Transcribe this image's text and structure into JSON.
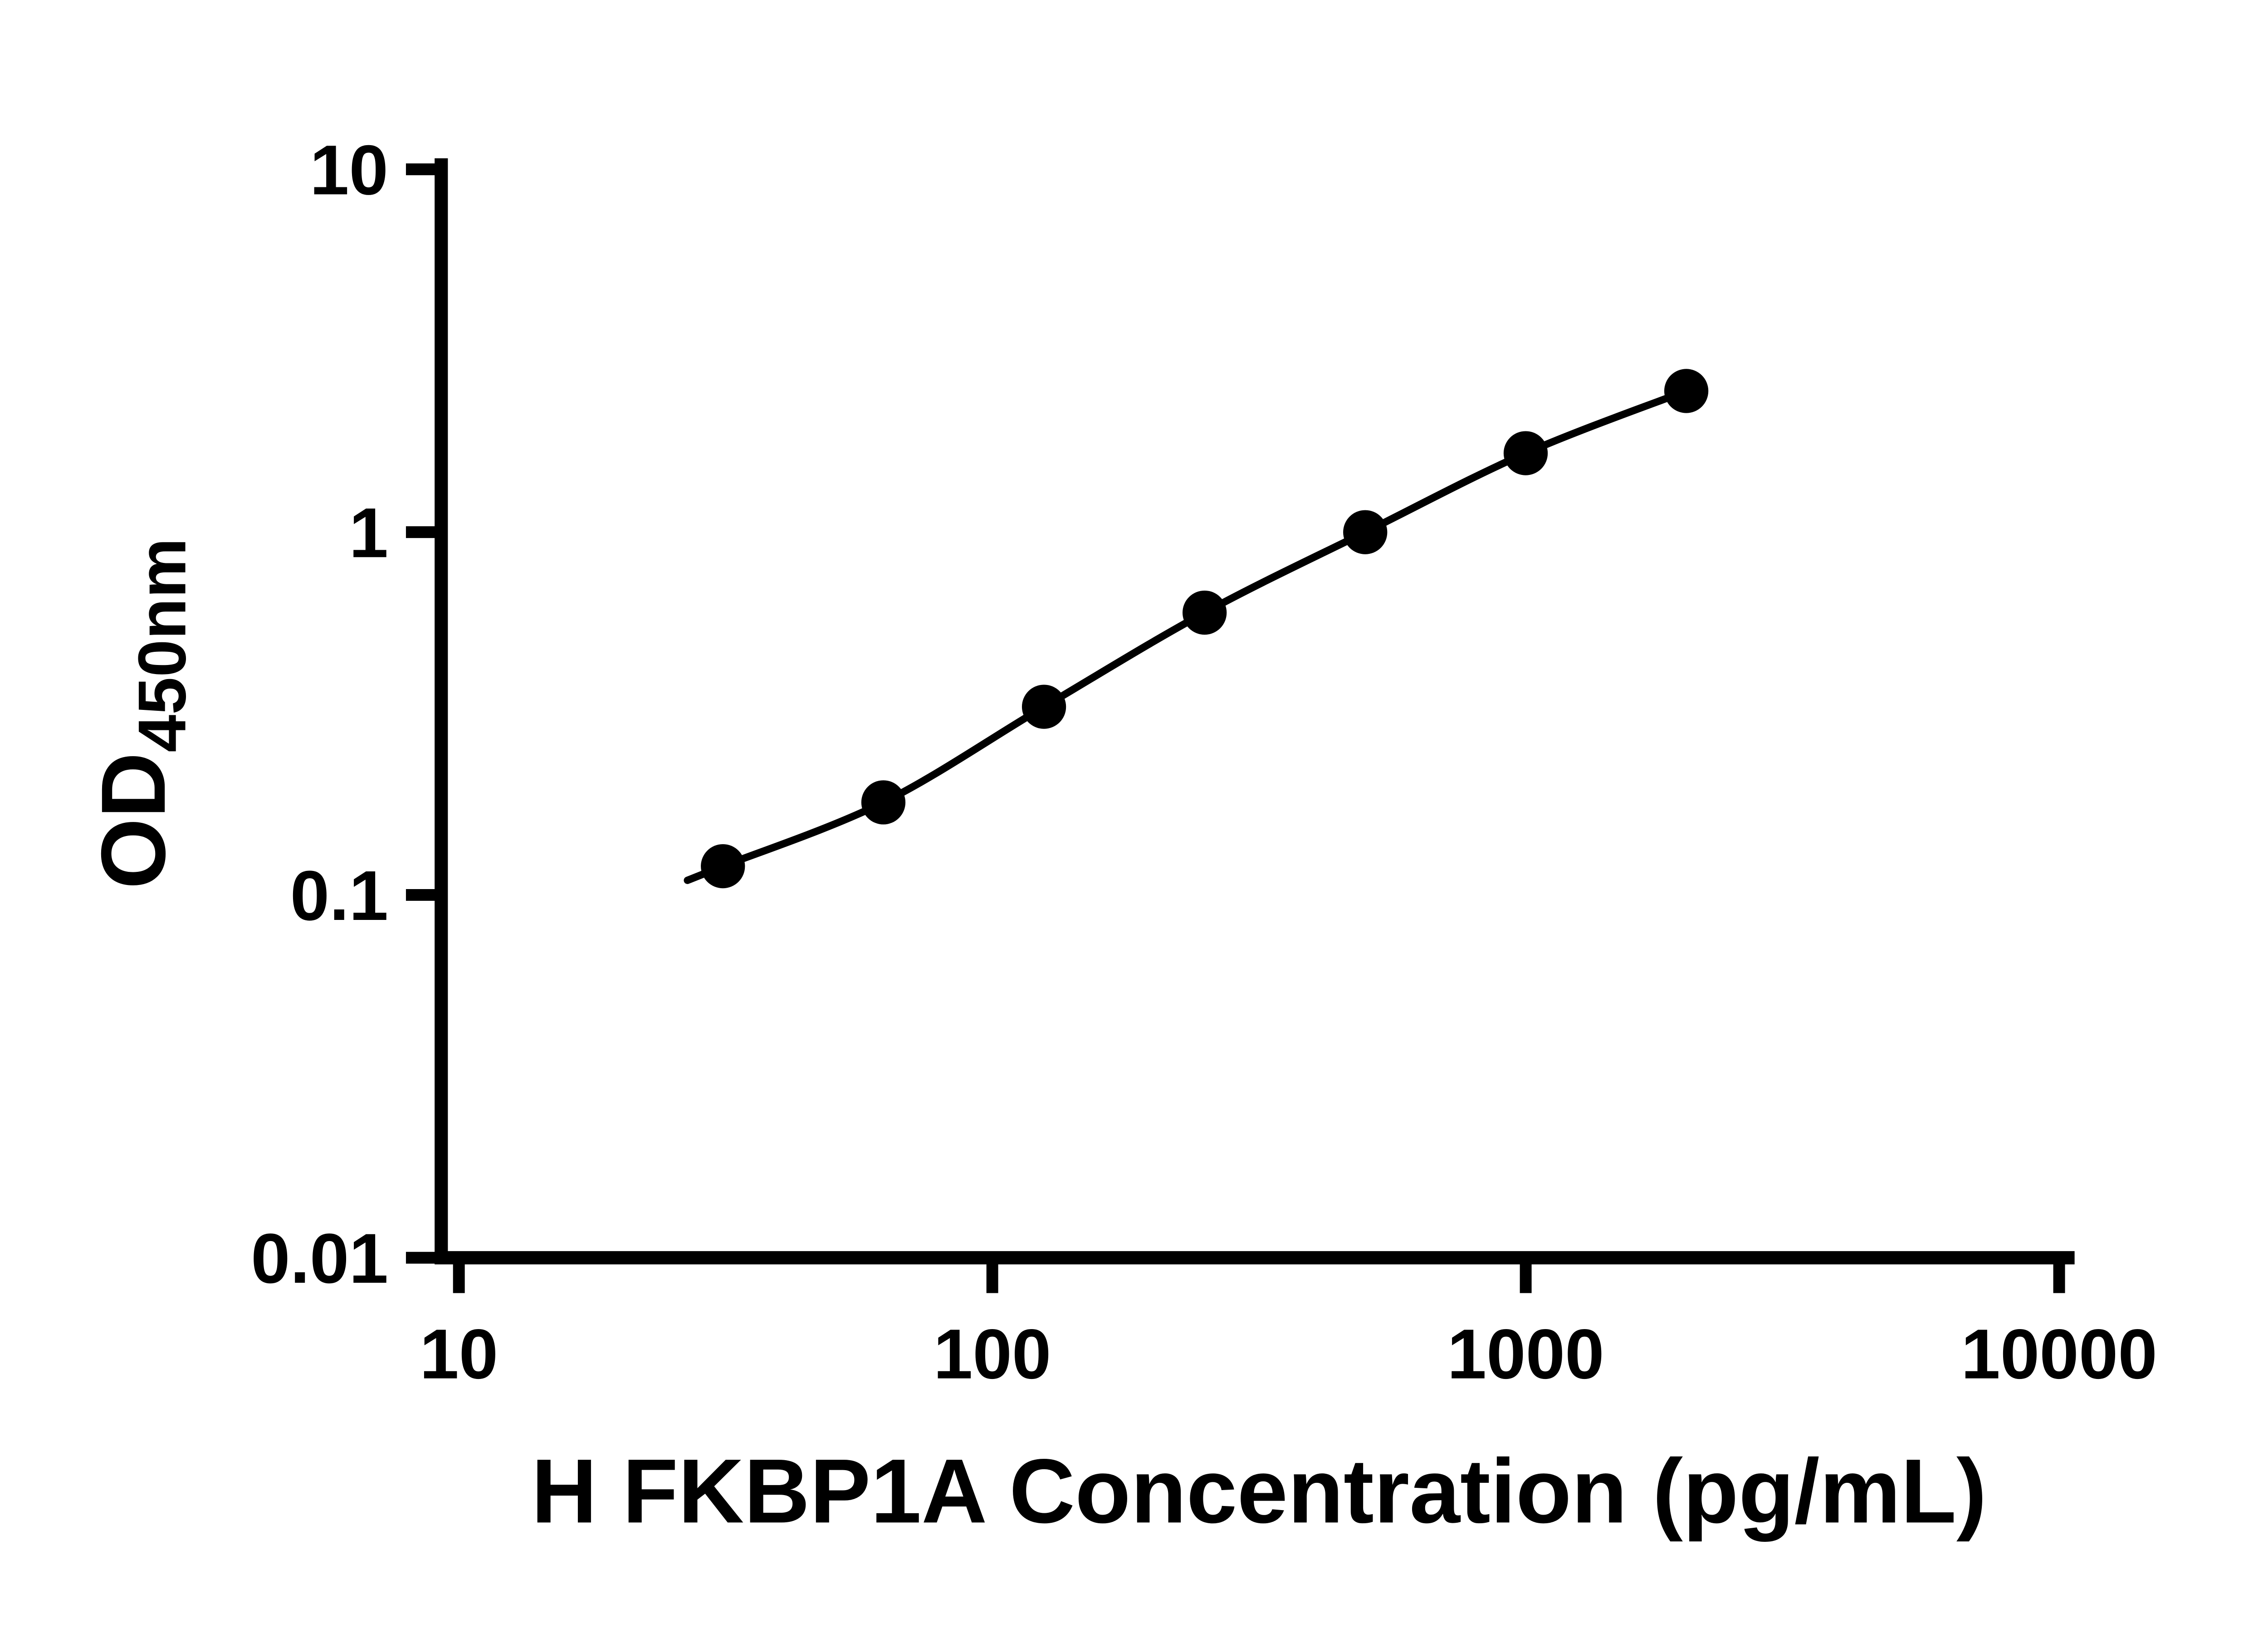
{
  "figure": {
    "background_color": "#ffffff",
    "axis_color": "#000000"
  },
  "chart_data": {
    "type": "scatter",
    "xlabel": "H FKBP1A Concentration (pg/mL)",
    "ylabel_main": "OD",
    "ylabel_sub": "450nm",
    "x_scale": "log10",
    "y_scale": "log10",
    "xlim": [
      10,
      10000
    ],
    "ylim": [
      0.01,
      10
    ],
    "x_ticks": [
      10,
      100,
      1000,
      10000
    ],
    "x_tick_labels": [
      "10",
      "100",
      "1000",
      "10000"
    ],
    "y_ticks": [
      0.01,
      0.1,
      1,
      10
    ],
    "y_tick_labels": [
      "0.01",
      "0.1",
      "1",
      "10"
    ],
    "grid": false,
    "legend": false,
    "series": [
      {
        "x": [
          31.25,
          62.5,
          125,
          250,
          500,
          1000,
          2000
        ],
        "y": [
          0.12,
          0.18,
          0.33,
          0.6,
          1.0,
          1.65,
          2.45
        ],
        "marker": "filled-circle",
        "marker_color": "#000000",
        "line": "smooth-fit",
        "line_color": "#000000"
      }
    ]
  }
}
